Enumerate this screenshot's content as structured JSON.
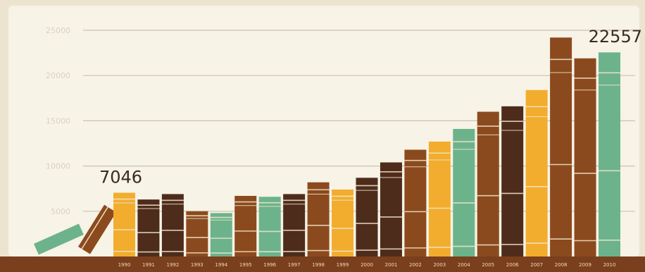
{
  "chart_data": {
    "type": "bar",
    "title": "",
    "xlabel": "",
    "ylabel": "",
    "ylim": [
      0,
      25000
    ],
    "grid": true,
    "yticks": [
      "25000",
      "20000",
      "15000",
      "10000",
      "5000"
    ],
    "categories": [
      "1990",
      "1991",
      "1992",
      "1993",
      "1994",
      "1995",
      "1996",
      "1997",
      "1998",
      "1999",
      "2000",
      "2001",
      "2002",
      "2003",
      "2004",
      "2005",
      "2006",
      "2007",
      "2008",
      "2009",
      "2010"
    ],
    "values": [
      7046,
      6300,
      6900,
      5000,
      4800,
      6700,
      6600,
      6900,
      8200,
      7400,
      8700,
      10400,
      11800,
      12700,
      14100,
      16000,
      16600,
      18400,
      24200,
      21900,
      22557
    ],
    "bar_colors": [
      "#f2ad2e",
      "#4e2c1c",
      "#4e2c1c",
      "#8b4a1e",
      "#6cb38c",
      "#8b4a1e",
      "#6cb38c",
      "#4e2c1c",
      "#8b4a1e",
      "#f2ad2e",
      "#4e2c1c",
      "#4e2c1c",
      "#8b4a1e",
      "#f2ad2e",
      "#6cb38c",
      "#8b4a1e",
      "#4e2c1c",
      "#f2ad2e",
      "#8b4a1e",
      "#8b4a1e",
      "#6cb38c"
    ],
    "annotations": [
      {
        "category": "1990",
        "label": "7046"
      },
      {
        "category": "2010",
        "label": "22557"
      }
    ]
  },
  "colors": {
    "background": "#ede4d0",
    "panel": "#f7f3e6",
    "gridline": "#c9c2b0",
    "tick_text": "#d9d2c2",
    "shelf": "#7a3f1c",
    "shelf_text": "#f6d9b4",
    "annotation_text": "#3a2a20",
    "leaning_book_green": "#6cb38c",
    "leaning_book_brown": "#8b4a1e"
  }
}
